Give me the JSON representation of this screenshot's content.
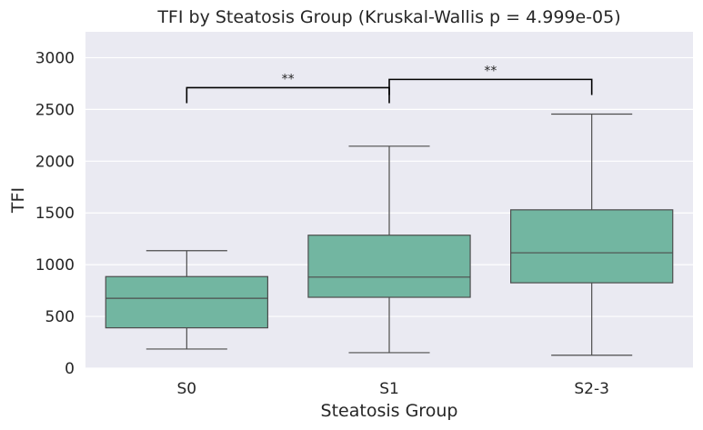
{
  "chart_data": {
    "type": "box",
    "title": "TFI by Steatosis Group (Kruskal-Wallis p = 4.999e-05)",
    "xlabel": "Steatosis Group",
    "ylabel": "TFI",
    "categories": [
      "S0",
      "S1",
      "S2-3"
    ],
    "boxes": [
      {
        "category": "S0",
        "min": 185,
        "q1": 390,
        "median": 675,
        "q3": 885,
        "max": 1135
      },
      {
        "category": "S1",
        "min": 150,
        "q1": 685,
        "median": 880,
        "q3": 1285,
        "max": 2145
      },
      {
        "category": "S2-3",
        "min": 125,
        "q1": 825,
        "median": 1115,
        "q3": 1530,
        "max": 2455
      }
    ],
    "ylim": [
      0,
      3250
    ],
    "yticks": [
      0,
      500,
      1000,
      1500,
      2000,
      2500,
      3000
    ],
    "grid": true,
    "box_color": "#72b6a1",
    "background_color": "#eaeaf2",
    "significance": [
      {
        "from": "S0",
        "to": "S1",
        "label": "**",
        "y": 2710,
        "drop": 150
      },
      {
        "from": "S1",
        "to": "S2-3",
        "label": "**",
        "y": 2790,
        "drop": 150
      }
    ]
  }
}
